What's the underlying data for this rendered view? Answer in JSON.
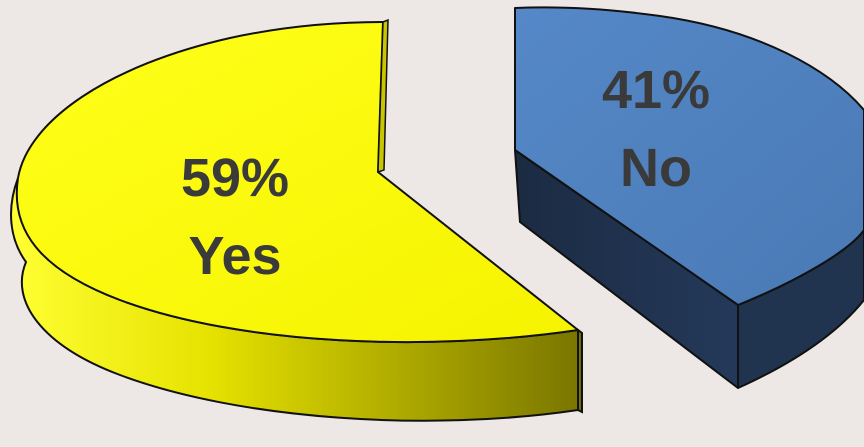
{
  "chart_data": {
    "type": "pie",
    "style": "3d-exploded",
    "slices": [
      {
        "label": "Yes",
        "percent_label": "59%",
        "value": 59,
        "color": "#ffff00",
        "side_color": "#b7b400"
      },
      {
        "label": "No",
        "percent_label": "41%",
        "value": 41,
        "color": "#4f81bd",
        "side_color": "#1f3350"
      }
    ],
    "legend": "none"
  }
}
